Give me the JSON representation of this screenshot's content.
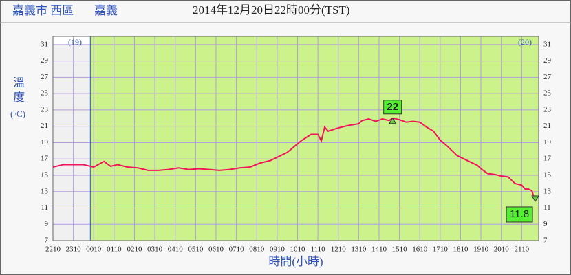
{
  "chart_data": {
    "type": "line",
    "location": "嘉義市 西區",
    "station": "嘉義",
    "title": "2014年12月20日22時00分(TST)",
    "y_label_main": "溫度",
    "y_label_unit": "(◦C)",
    "x_label": "時間(小時)",
    "day_labels": [
      "(19)",
      "(20)"
    ],
    "day_boundary": "0000",
    "x": [
      "2210",
      "2240",
      "2310",
      "2340",
      "0000",
      "0010",
      "0040",
      "0100",
      "0120",
      "0150",
      "0220",
      "0250",
      "0320",
      "0350",
      "0420",
      "0450",
      "0520",
      "0550",
      "0620",
      "0650",
      "0720",
      "0750",
      "0820",
      "0850",
      "0910",
      "0940",
      "1000",
      "1020",
      "1050",
      "1110",
      "1120",
      "1130",
      "1140",
      "1210",
      "1240",
      "1310",
      "1320",
      "1340",
      "1400",
      "1420",
      "1440",
      "1450",
      "1510",
      "1530",
      "1550",
      "1610",
      "1630",
      "1650",
      "1710",
      "1730",
      "1800",
      "1820",
      "1840",
      "1900",
      "1910",
      "1930",
      "1950",
      "2010",
      "2030",
      "2050",
      "2110",
      "2120",
      "2130",
      "2140",
      "2150"
    ],
    "series": [
      {
        "color": "#f0145a",
        "values": [
          16.0,
          16.3,
          16.3,
          16.3,
          16.1,
          16.0,
          16.7,
          16.1,
          16.3,
          16.0,
          15.9,
          15.6,
          15.6,
          15.7,
          15.9,
          15.7,
          15.8,
          15.7,
          15.6,
          15.7,
          15.9,
          16.0,
          16.5,
          16.8,
          17.2,
          17.8,
          18.5,
          19.2,
          20.0,
          20.0,
          19.2,
          20.9,
          20.4,
          20.8,
          21.1,
          21.3,
          21.7,
          21.9,
          21.6,
          21.9,
          21.7,
          22.0,
          21.8,
          21.5,
          21.6,
          21.5,
          20.9,
          20.4,
          19.3,
          18.6,
          17.4,
          17.0,
          16.6,
          16.2,
          15.8,
          15.2,
          15.1,
          14.9,
          14.8,
          14.0,
          13.8,
          13.3,
          13.3,
          13.1,
          11.8
        ]
      }
    ],
    "annotations": [
      {
        "kind": "max",
        "x": "1450",
        "value": 22
      },
      {
        "kind": "min",
        "x": "2150",
        "value": 11.8
      }
    ],
    "xlim": [
      "2210",
      "2200"
    ],
    "xticks": [
      "2210",
      "2310",
      "0010",
      "0110",
      "0210",
      "0310",
      "0410",
      "0510",
      "0610",
      "0710",
      "0810",
      "0910",
      "1010",
      "1110",
      "1210",
      "1310",
      "1410",
      "1510",
      "1610",
      "1710",
      "1810",
      "1910",
      "2010",
      "2110"
    ],
    "ylim": [
      7,
      32
    ],
    "yticks": [
      7,
      9,
      11,
      13,
      15,
      17,
      19,
      21,
      23,
      25,
      27,
      29,
      31
    ],
    "grid": true,
    "plot_color": "#ccf28c",
    "before_color": "#ffffff",
    "grid_color": "#b39ddb"
  }
}
